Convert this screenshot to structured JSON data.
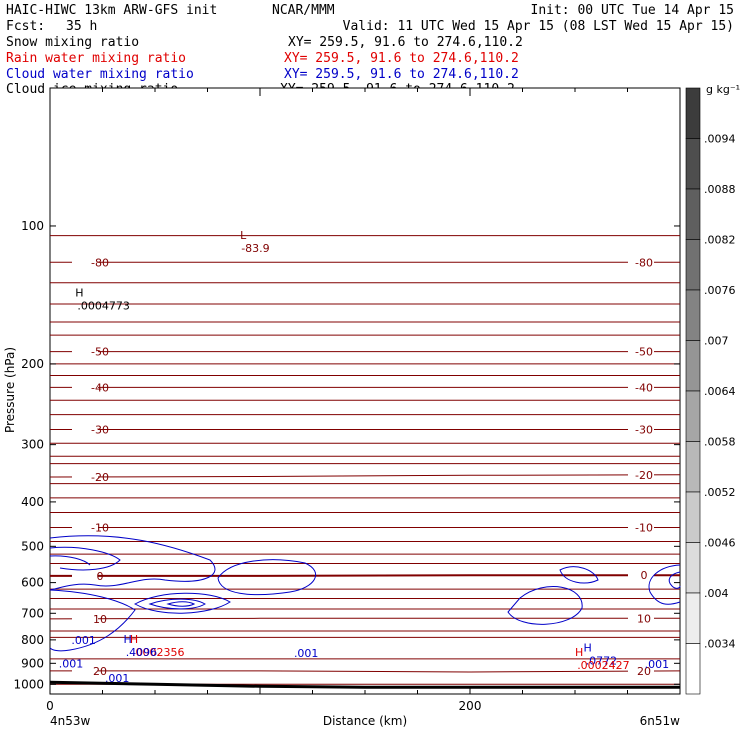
{
  "header": {
    "model": "HAIC-HIWC 13km ARW-GFS init",
    "center": "NCAR/MMM",
    "init": "Init: 00 UTC Tue 14 Apr 15",
    "fcst_label": "Fcst:",
    "fcst_value": "35 h",
    "valid": "Valid: 11 UTC Wed 15 Apr 15 (08 LST Wed 15 Apr 15)"
  },
  "fields": [
    {
      "name": "Snow mixing ratio",
      "xy": "XY= 259.5, 91.6 to 274.6,110.2",
      "color": "#000000"
    },
    {
      "name": "Rain water mixing ratio",
      "xy": "XY= 259.5, 91.6 to 274.6,110.2",
      "color": "#e00000"
    },
    {
      "name": "Cloud water mixing ratio",
      "xy": "XY= 259.5, 91.6 to 274.6,110.2",
      "color": "#0000c8"
    },
    {
      "name": "Cloud ice mixing ratio",
      "xy": "XY= 259.5, 91.6 to 274.6,110.2",
      "color": "#000000"
    }
  ],
  "colorbar": {
    "unit": "g kg⁻¹",
    "labels": [
      ".0094",
      ".0088",
      ".0082",
      ".0076",
      ".007",
      ".0064",
      ".0058",
      ".0052",
      ".0046",
      ".004",
      ".0034"
    ]
  },
  "chart_data": {
    "type": "contour",
    "xlabel": "Distance (km)",
    "ylabel": "Pressure (hPa)",
    "xlim": [
      0,
      300
    ],
    "ylim": [
      1050,
      50
    ],
    "y_scale": "log",
    "x_ticks": [
      0,
      200
    ],
    "y_ticks": [
      100,
      200,
      300,
      400,
      500,
      600,
      700,
      800,
      900,
      1000
    ],
    "x_endpoints": {
      "left": "4n53w",
      "right": "6n51w"
    },
    "temperature_contours": {
      "color": "#800000",
      "levels": [
        {
          "label": "-80",
          "p": [
            120,
            120,
            120,
            120
          ]
        },
        {
          "label": "-50",
          "p": [
            188,
            188,
            188,
            188
          ]
        },
        {
          "label": "-40",
          "p": [
            225,
            225,
            225,
            225
          ]
        },
        {
          "label": "-30",
          "p": [
            278,
            278,
            278,
            278
          ]
        },
        {
          "label": "-20",
          "p": [
            353,
            352,
            350,
            349
          ]
        },
        {
          "label": "-10",
          "p": [
            455,
            455,
            455,
            455
          ]
        },
        {
          "label": "0",
          "p": [
            580,
            580,
            578,
            578
          ]
        },
        {
          "label": "10",
          "p": [
            720,
            718,
            718,
            718
          ]
        },
        {
          "label": "20",
          "p": [
            935,
            935,
            940,
            935
          ]
        }
      ],
      "unlabeled_p": [
        105,
        133,
        148,
        162,
        173,
        200,
        212,
        240,
        258,
        298,
        318,
        330,
        365,
        392,
        422,
        488,
        520,
        545,
        620,
        650,
        685,
        765,
        790,
        880,
        1000
      ]
    },
    "extrema": [
      {
        "type": "L",
        "value": "-83.9",
        "x": 92,
        "p": 110,
        "color": "#800000"
      },
      {
        "type": "H",
        "value": ".0004773",
        "x": 14,
        "p": 147,
        "color": "#000000"
      },
      {
        "type": "H",
        "value": ".0002356",
        "x": 40,
        "p": 838,
        "color": "#e00000"
      },
      {
        "type": "H",
        "value": ".4096",
        "x": 37,
        "p": 838,
        "color": "#0000c8"
      },
      {
        "type": "H",
        "value": ".0772",
        "x": 256,
        "p": 873,
        "color": "#0000c8"
      },
      {
        "type": "H",
        "value": ".0002427",
        "x": 252,
        "p": 895,
        "color": "#e00000"
      }
    ],
    "cloud_water_labels": [
      {
        "text": ".001",
        "x": 16,
        "p": 800
      },
      {
        "text": ".001",
        "x": 122,
        "p": 855
      },
      {
        "text": ".001",
        "x": 10,
        "p": 900
      },
      {
        "text": ".001",
        "x": 32,
        "p": 970
      },
      {
        "text": ".001",
        "x": 289,
        "p": 903
      }
    ],
    "ground_p": [
      990,
      1000,
      1010,
      1015,
      1015,
      1015,
      1015
    ]
  }
}
